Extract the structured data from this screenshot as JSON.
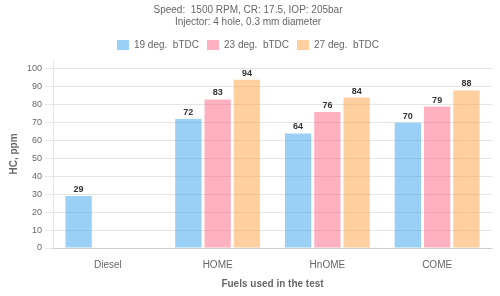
{
  "chart_data": {
    "type": "bar",
    "subtitle": [
      "Speed:  1500 RPM, CR: 17.5, IOP: 205bar",
      "Injector: 4 hole, 0.3 mm diameter"
    ],
    "categories": [
      "Diesel",
      "HOME",
      "HnOME",
      "COME"
    ],
    "series": [
      {
        "name": "19 deg.  bTDC",
        "values": [
          29,
          72,
          64,
          70
        ]
      },
      {
        "name": "23 deg.  bTDC",
        "values": [
          null,
          83,
          76,
          79
        ]
      },
      {
        "name": "27 deg.  bTDC",
        "values": [
          null,
          94,
          84,
          88
        ]
      }
    ],
    "xlabel": "Fuels used in the test",
    "ylabel": "HC, ppm",
    "ylim": [
      0,
      105
    ],
    "yticks": [
      0,
      10,
      20,
      30,
      40,
      50,
      60,
      70,
      80,
      90,
      100
    ],
    "grid": true,
    "legend": "top",
    "data_labels": true
  }
}
